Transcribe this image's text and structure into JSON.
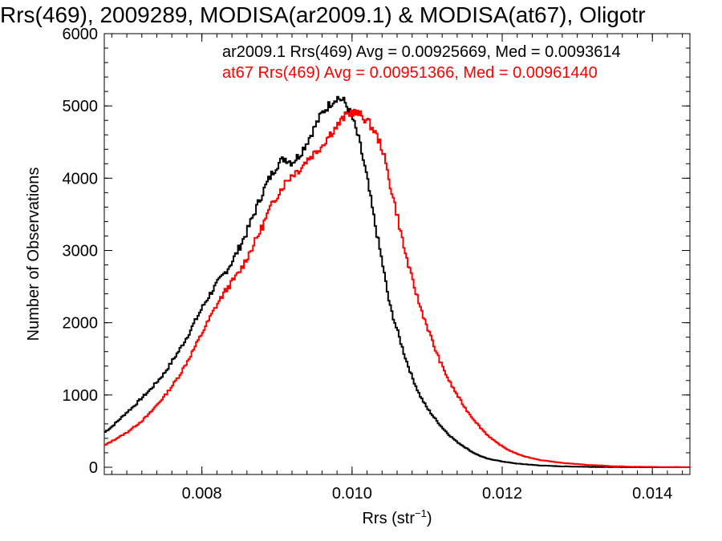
{
  "chart_data": {
    "type": "line",
    "title": "Rrs(469), 2009289, MODISA(ar2009.1) & MODISA(at67), Oligotr",
    "xlabel": "Rrs (str",
    "xlabel_sup": "−1",
    "xlabel_close": ")",
    "ylabel": "Number of Observations",
    "xlim": [
      0.0067,
      0.0145
    ],
    "ylim": [
      -100,
      6000
    ],
    "x_ticks": [
      "0.008",
      "0.010",
      "0.012",
      "0.014"
    ],
    "x_tick_values": [
      0.008,
      0.01,
      0.012,
      0.014
    ],
    "y_ticks": [
      "0",
      "1000",
      "2000",
      "3000",
      "4000",
      "5000",
      "6000"
    ],
    "y_tick_values": [
      0,
      1000,
      2000,
      3000,
      4000,
      5000,
      6000
    ],
    "grid": false,
    "legend_position": "top",
    "series": [
      {
        "name": "ar2009.1 Rrs(469) Avg = 0.00925669, Med = 0.0093614",
        "color": "#000000",
        "points": [
          [
            0.0067,
            480
          ],
          [
            0.0068,
            560
          ],
          [
            0.0069,
            660
          ],
          [
            0.007,
            760
          ],
          [
            0.0071,
            850
          ],
          [
            0.0072,
            960
          ],
          [
            0.0073,
            1060
          ],
          [
            0.0074,
            1180
          ],
          [
            0.0075,
            1300
          ],
          [
            0.0076,
            1460
          ],
          [
            0.0077,
            1620
          ],
          [
            0.0078,
            1800
          ],
          [
            0.0079,
            2000
          ],
          [
            0.008,
            2200
          ],
          [
            0.0081,
            2380
          ],
          [
            0.0082,
            2540
          ],
          [
            0.0083,
            2680
          ],
          [
            0.0084,
            2840
          ],
          [
            0.0085,
            3040
          ],
          [
            0.0086,
            3260
          ],
          [
            0.0087,
            3520
          ],
          [
            0.0088,
            3780
          ],
          [
            0.0089,
            4000
          ],
          [
            0.009,
            4180
          ],
          [
            0.0091,
            4280
          ],
          [
            0.0092,
            4220
          ],
          [
            0.0093,
            4320
          ],
          [
            0.0094,
            4500
          ],
          [
            0.0095,
            4700
          ],
          [
            0.0096,
            4900
          ],
          [
            0.0097,
            5020
          ],
          [
            0.0098,
            5120
          ],
          [
            0.0099,
            5060
          ],
          [
            0.01,
            4850
          ],
          [
            0.0101,
            4500
          ],
          [
            0.0102,
            4000
          ],
          [
            0.0103,
            3400
          ],
          [
            0.0104,
            2850
          ],
          [
            0.0105,
            2250
          ],
          [
            0.0106,
            1900
          ],
          [
            0.0107,
            1550
          ],
          [
            0.0108,
            1250
          ],
          [
            0.0109,
            1000
          ],
          [
            0.011,
            820
          ],
          [
            0.0111,
            680
          ],
          [
            0.0112,
            550
          ],
          [
            0.0113,
            440
          ],
          [
            0.0114,
            350
          ],
          [
            0.0115,
            280
          ],
          [
            0.0116,
            210
          ],
          [
            0.0117,
            160
          ],
          [
            0.0118,
            120
          ],
          [
            0.012,
            80
          ],
          [
            0.0122,
            50
          ],
          [
            0.0125,
            25
          ],
          [
            0.0128,
            12
          ],
          [
            0.0132,
            5
          ],
          [
            0.0135,
            2
          ],
          [
            0.014,
            0
          ],
          [
            0.0145,
            0
          ]
        ]
      },
      {
        "name": "at67 Rrs(469) Avg = 0.00951366, Med = 0.00961440",
        "color": "#ff0000",
        "points": [
          [
            0.0067,
            300
          ],
          [
            0.0068,
            360
          ],
          [
            0.0069,
            420
          ],
          [
            0.007,
            480
          ],
          [
            0.0071,
            560
          ],
          [
            0.0072,
            640
          ],
          [
            0.0073,
            740
          ],
          [
            0.0074,
            860
          ],
          [
            0.0075,
            980
          ],
          [
            0.0076,
            1120
          ],
          [
            0.0077,
            1270
          ],
          [
            0.0078,
            1450
          ],
          [
            0.0079,
            1650
          ],
          [
            0.008,
            1850
          ],
          [
            0.0081,
            2050
          ],
          [
            0.0082,
            2250
          ],
          [
            0.0083,
            2420
          ],
          [
            0.0084,
            2560
          ],
          [
            0.0085,
            2700
          ],
          [
            0.0086,
            2900
          ],
          [
            0.0087,
            3100
          ],
          [
            0.0088,
            3320
          ],
          [
            0.0089,
            3560
          ],
          [
            0.009,
            3760
          ],
          [
            0.0091,
            3920
          ],
          [
            0.0092,
            4050
          ],
          [
            0.0093,
            4120
          ],
          [
            0.0094,
            4250
          ],
          [
            0.0095,
            4350
          ],
          [
            0.0096,
            4450
          ],
          [
            0.0097,
            4600
          ],
          [
            0.0098,
            4720
          ],
          [
            0.0099,
            4850
          ],
          [
            0.01,
            4920
          ],
          [
            0.0101,
            4880
          ],
          [
            0.0102,
            4800
          ],
          [
            0.0103,
            4650
          ],
          [
            0.0104,
            4420
          ],
          [
            0.0105,
            3950
          ],
          [
            0.0106,
            3500
          ],
          [
            0.0107,
            3000
          ],
          [
            0.0108,
            2600
          ],
          [
            0.0109,
            2250
          ],
          [
            0.011,
            1950
          ],
          [
            0.0111,
            1650
          ],
          [
            0.0112,
            1400
          ],
          [
            0.0113,
            1180
          ],
          [
            0.0114,
            1000
          ],
          [
            0.0115,
            830
          ],
          [
            0.0116,
            690
          ],
          [
            0.0117,
            560
          ],
          [
            0.0118,
            450
          ],
          [
            0.0119,
            360
          ],
          [
            0.012,
            290
          ],
          [
            0.0121,
            230
          ],
          [
            0.0122,
            185
          ],
          [
            0.0123,
            150
          ],
          [
            0.0125,
            100
          ],
          [
            0.0128,
            60
          ],
          [
            0.0131,
            35
          ],
          [
            0.0134,
            18
          ],
          [
            0.0137,
            8
          ],
          [
            0.014,
            4
          ],
          [
            0.0145,
            0
          ]
        ]
      }
    ]
  }
}
